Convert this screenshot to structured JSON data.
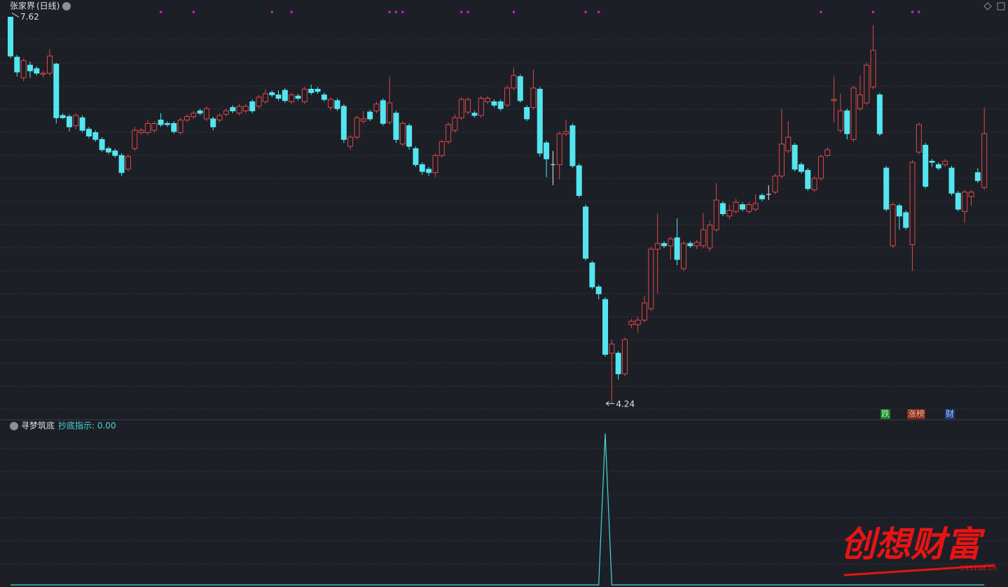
{
  "chart_data": [
    {
      "type": "candlestick",
      "title": "张家界",
      "period": "(日线)",
      "ylim": [
        4.11,
        7.77
      ],
      "up_color": "#e04848",
      "down_color": "#54e6f0",
      "high_label": 7.62,
      "low_label": 4.24,
      "high_index": 0,
      "low_index": 92,
      "signals": [
        23,
        28,
        40,
        43,
        58,
        59,
        60,
        69,
        70,
        77,
        88,
        90,
        124,
        132,
        138,
        139
      ],
      "signal_color": "#e020e0",
      "badges": [
        "跌",
        "涨榜",
        "财"
      ],
      "candles": [
        [
          7.62,
          7.62,
          7.26,
          7.28
        ],
        [
          7.27,
          7.29,
          7.1,
          7.14
        ],
        [
          7.09,
          7.26,
          7.06,
          7.24
        ],
        [
          7.2,
          7.23,
          7.09,
          7.15
        ],
        [
          7.17,
          7.19,
          7.11,
          7.13
        ],
        [
          7.12,
          7.15,
          7.09,
          7.13
        ],
        [
          7.13,
          7.34,
          7.11,
          7.28
        ],
        [
          7.21,
          7.22,
          6.69,
          6.74
        ],
        [
          6.76,
          6.78,
          6.73,
          6.74
        ],
        [
          6.75,
          6.77,
          6.62,
          6.66
        ],
        [
          6.67,
          6.78,
          6.64,
          6.76
        ],
        [
          6.74,
          6.76,
          6.61,
          6.63
        ],
        [
          6.64,
          6.66,
          6.56,
          6.58
        ],
        [
          6.61,
          6.63,
          6.53,
          6.55
        ],
        [
          6.55,
          6.57,
          6.44,
          6.46
        ],
        [
          6.47,
          6.49,
          6.42,
          6.44
        ],
        [
          6.45,
          6.47,
          6.39,
          6.41
        ],
        [
          6.41,
          6.43,
          6.23,
          6.26
        ],
        [
          6.29,
          6.42,
          6.27,
          6.4
        ],
        [
          6.47,
          6.66,
          6.45,
          6.63
        ],
        [
          6.61,
          6.65,
          6.59,
          6.63
        ],
        [
          6.61,
          6.72,
          6.59,
          6.69
        ],
        [
          6.63,
          6.71,
          6.61,
          6.69
        ],
        [
          6.72,
          6.78,
          6.66,
          6.68
        ],
        [
          6.69,
          6.71,
          6.66,
          6.68
        ],
        [
          6.69,
          6.71,
          6.6,
          6.62
        ],
        [
          6.61,
          6.74,
          6.59,
          6.72
        ],
        [
          6.72,
          6.77,
          6.7,
          6.75
        ],
        [
          6.75,
          6.8,
          6.73,
          6.78
        ],
        [
          6.8,
          6.82,
          6.76,
          6.78
        ],
        [
          6.73,
          6.84,
          6.71,
          6.82
        ],
        [
          6.73,
          6.75,
          6.63,
          6.66
        ],
        [
          6.72,
          6.78,
          6.7,
          6.76
        ],
        [
          6.77,
          6.82,
          6.75,
          6.8
        ],
        [
          6.83,
          6.85,
          6.78,
          6.8
        ],
        [
          6.78,
          6.86,
          6.76,
          6.84
        ],
        [
          6.8,
          6.86,
          6.78,
          6.84
        ],
        [
          6.88,
          6.9,
          6.78,
          6.8
        ],
        [
          6.84,
          6.94,
          6.82,
          6.92
        ],
        [
          6.88,
          6.99,
          6.86,
          6.95
        ],
        [
          6.96,
          6.98,
          6.92,
          6.94
        ],
        [
          6.94,
          6.98,
          6.89,
          6.91
        ],
        [
          6.98,
          7.0,
          6.87,
          6.89
        ],
        [
          6.88,
          6.96,
          6.86,
          6.94
        ],
        [
          6.93,
          6.95,
          6.89,
          6.91
        ],
        [
          6.88,
          7.01,
          6.86,
          6.99
        ],
        [
          6.99,
          7.03,
          6.94,
          6.96
        ],
        [
          6.99,
          7.01,
          6.95,
          6.97
        ],
        [
          6.94,
          6.96,
          6.88,
          6.9
        ],
        [
          6.83,
          6.92,
          6.8,
          6.9
        ],
        [
          6.89,
          6.91,
          6.8,
          6.82
        ],
        [
          6.84,
          6.86,
          6.52,
          6.55
        ],
        [
          6.49,
          6.59,
          6.46,
          6.57
        ],
        [
          6.57,
          6.76,
          6.55,
          6.74
        ],
        [
          6.71,
          6.8,
          6.69,
          6.73
        ],
        [
          6.79,
          6.81,
          6.71,
          6.73
        ],
        [
          6.8,
          6.88,
          6.78,
          6.86
        ],
        [
          6.89,
          6.91,
          6.67,
          6.69
        ],
        [
          6.7,
          7.1,
          6.68,
          6.87
        ],
        [
          6.78,
          6.8,
          6.52,
          6.55
        ],
        [
          6.51,
          6.71,
          6.49,
          6.69
        ],
        [
          6.67,
          6.69,
          6.46,
          6.49
        ],
        [
          6.47,
          6.49,
          6.31,
          6.33
        ],
        [
          6.33,
          6.35,
          6.24,
          6.27
        ],
        [
          6.29,
          6.31,
          6.23,
          6.26
        ],
        [
          6.26,
          6.43,
          6.22,
          6.41
        ],
        [
          6.41,
          6.55,
          6.39,
          6.53
        ],
        [
          6.53,
          6.7,
          6.51,
          6.68
        ],
        [
          6.63,
          6.77,
          6.61,
          6.74
        ],
        [
          6.74,
          6.92,
          6.72,
          6.9
        ],
        [
          6.79,
          6.92,
          6.77,
          6.9
        ],
        [
          6.78,
          6.8,
          6.74,
          6.76
        ],
        [
          6.76,
          6.93,
          6.74,
          6.91
        ],
        [
          6.88,
          6.93,
          6.86,
          6.91
        ],
        [
          6.88,
          6.9,
          6.83,
          6.85
        ],
        [
          6.88,
          6.9,
          6.8,
          6.82
        ],
        [
          6.85,
          7.02,
          6.83,
          7.0
        ],
        [
          7.0,
          7.18,
          6.98,
          7.11
        ],
        [
          7.1,
          7.12,
          6.87,
          6.89
        ],
        [
          6.83,
          6.85,
          6.71,
          6.73
        ],
        [
          6.83,
          7.16,
          6.81,
          7.0
        ],
        [
          6.99,
          7.01,
          6.4,
          6.43
        ],
        [
          6.52,
          6.54,
          6.22,
          6.38
        ],
        [
          6.33,
          6.45,
          6.15,
          6.33
        ],
        [
          6.33,
          6.62,
          6.2,
          6.6
        ],
        [
          6.6,
          6.72,
          6.58,
          6.62
        ],
        [
          6.67,
          6.69,
          6.3,
          6.32
        ],
        [
          6.32,
          6.34,
          6.04,
          6.06
        ],
        [
          5.96,
          5.98,
          5.49,
          5.51
        ],
        [
          5.47,
          5.49,
          5.24,
          5.26
        ],
        [
          5.26,
          5.28,
          5.15,
          5.2
        ],
        [
          5.15,
          5.17,
          4.65,
          4.67
        ],
        [
          4.68,
          4.8,
          4.24,
          4.76
        ],
        [
          4.68,
          4.7,
          4.45,
          4.5
        ],
        [
          4.5,
          4.82,
          4.48,
          4.8
        ],
        [
          4.93,
          4.98,
          4.9,
          4.96
        ],
        [
          4.93,
          5.0,
          4.86,
          4.97
        ],
        [
          4.97,
          5.18,
          4.95,
          5.12
        ],
        [
          5.07,
          5.61,
          5.05,
          5.59
        ],
        [
          5.59,
          5.9,
          5.2,
          5.64
        ],
        [
          5.64,
          5.66,
          5.6,
          5.62
        ],
        [
          5.62,
          5.7,
          5.5,
          5.68
        ],
        [
          5.69,
          5.86,
          5.45,
          5.5
        ],
        [
          5.42,
          5.66,
          5.4,
          5.64
        ],
        [
          5.64,
          5.66,
          5.6,
          5.62
        ],
        [
          5.62,
          5.67,
          5.59,
          5.65
        ],
        [
          5.62,
          5.91,
          5.6,
          5.76
        ],
        [
          5.6,
          5.84,
          5.57,
          5.8
        ],
        [
          5.76,
          6.17,
          5.74,
          6.02
        ],
        [
          5.99,
          6.01,
          5.88,
          5.9
        ],
        [
          5.88,
          5.98,
          5.85,
          5.93
        ],
        [
          5.92,
          6.03,
          5.9,
          6.0
        ],
        [
          5.98,
          6.0,
          5.92,
          5.94
        ],
        [
          5.92,
          6.0,
          5.9,
          5.98
        ],
        [
          5.94,
          6.07,
          5.92,
          5.99
        ],
        [
          6.06,
          6.08,
          6.01,
          6.03
        ],
        [
          6.07,
          6.15,
          6.02,
          6.07
        ],
        [
          6.09,
          6.25,
          6.07,
          6.23
        ],
        [
          6.23,
          6.82,
          6.21,
          6.51
        ],
        [
          6.45,
          6.71,
          6.43,
          6.57
        ],
        [
          6.5,
          6.52,
          6.27,
          6.29
        ],
        [
          6.33,
          6.35,
          6.25,
          6.27
        ],
        [
          6.28,
          6.3,
          6.1,
          6.12
        ],
        [
          6.11,
          6.23,
          6.09,
          6.21
        ],
        [
          6.21,
          6.42,
          6.19,
          6.4
        ],
        [
          6.41,
          6.48,
          6.39,
          6.46
        ],
        [
          6.89,
          7.1,
          6.7,
          6.9
        ],
        [
          6.63,
          6.95,
          6.61,
          6.8
        ],
        [
          6.8,
          6.82,
          6.55,
          6.6
        ],
        [
          6.55,
          7.02,
          6.53,
          7.0
        ],
        [
          6.82,
          7.11,
          6.8,
          6.94
        ],
        [
          6.87,
          7.22,
          6.85,
          7.2
        ],
        [
          7.01,
          7.55,
          6.99,
          7.33
        ],
        [
          6.94,
          6.96,
          6.58,
          6.6
        ],
        [
          6.3,
          6.32,
          5.92,
          5.94
        ],
        [
          5.62,
          6.0,
          5.6,
          5.98
        ],
        [
          5.97,
          5.99,
          5.76,
          5.88
        ],
        [
          5.91,
          5.93,
          5.76,
          5.78
        ],
        [
          5.63,
          6.37,
          5.4,
          6.35
        ],
        [
          6.44,
          6.7,
          6.42,
          6.68
        ],
        [
          6.5,
          6.52,
          6.12,
          6.14
        ],
        [
          6.36,
          6.38,
          6.31,
          6.35
        ],
        [
          6.33,
          6.35,
          6.28,
          6.3
        ],
        [
          6.33,
          6.38,
          6.31,
          6.36
        ],
        [
          6.3,
          6.32,
          6.06,
          6.08
        ],
        [
          6.08,
          6.1,
          5.92,
          5.94
        ],
        [
          5.92,
          6.11,
          5.82,
          6.09
        ],
        [
          6.05,
          6.11,
          5.97,
          6.09
        ],
        [
          6.26,
          6.3,
          6.17,
          6.19
        ],
        [
          6.13,
          6.83,
          6.11,
          6.6
        ]
      ]
    },
    {
      "type": "line",
      "title": "寻梦筑底",
      "legend": "抄底指示: 0.00",
      "color": "#46d8d8",
      "ylim": [
        0,
        1.09
      ],
      "values": [
        0,
        0,
        0,
        0,
        0,
        0,
        0,
        0,
        0,
        0,
        0,
        0,
        0,
        0,
        0,
        0,
        0,
        0,
        0,
        0,
        0,
        0,
        0,
        0,
        0,
        0,
        0,
        0,
        0,
        0,
        0,
        0,
        0,
        0,
        0,
        0,
        0,
        0,
        0,
        0,
        0,
        0,
        0,
        0,
        0,
        0,
        0,
        0,
        0,
        0,
        0,
        0,
        0,
        0,
        0,
        0,
        0,
        0,
        0,
        0,
        0,
        0,
        0,
        0,
        0,
        0,
        0,
        0,
        0,
        0,
        0,
        0,
        0,
        0,
        0,
        0,
        0,
        0,
        0,
        0,
        0,
        0,
        0,
        0,
        0,
        0,
        0,
        0,
        0,
        0,
        0,
        1,
        0,
        0,
        0,
        0,
        0,
        0,
        0,
        0,
        0,
        0,
        0,
        0,
        0,
        0,
        0,
        0,
        0,
        0,
        0,
        0,
        0,
        0,
        0,
        0,
        0,
        0,
        0,
        0,
        0,
        0,
        0,
        0,
        0,
        0,
        0,
        0,
        0,
        0,
        0,
        0,
        0,
        0,
        0,
        0,
        0,
        0,
        0,
        0,
        0,
        0,
        0,
        0,
        0,
        0,
        0,
        0,
        0,
        0
      ]
    }
  ],
  "watermark": {
    "text": "创想财富",
    "site": "995168.cn"
  }
}
